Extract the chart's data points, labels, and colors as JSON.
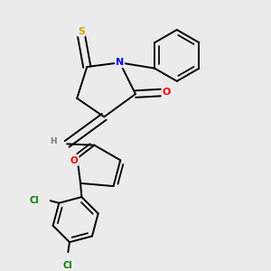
{
  "background_color": "#ebebeb",
  "atom_colors": {
    "S": "#ccaa00",
    "N": "#0000ff",
    "O": "#ff0000",
    "C": "#000000",
    "H": "#777777",
    "Cl": "#008000"
  },
  "bond_color": "#000000",
  "bond_width": 1.4
}
